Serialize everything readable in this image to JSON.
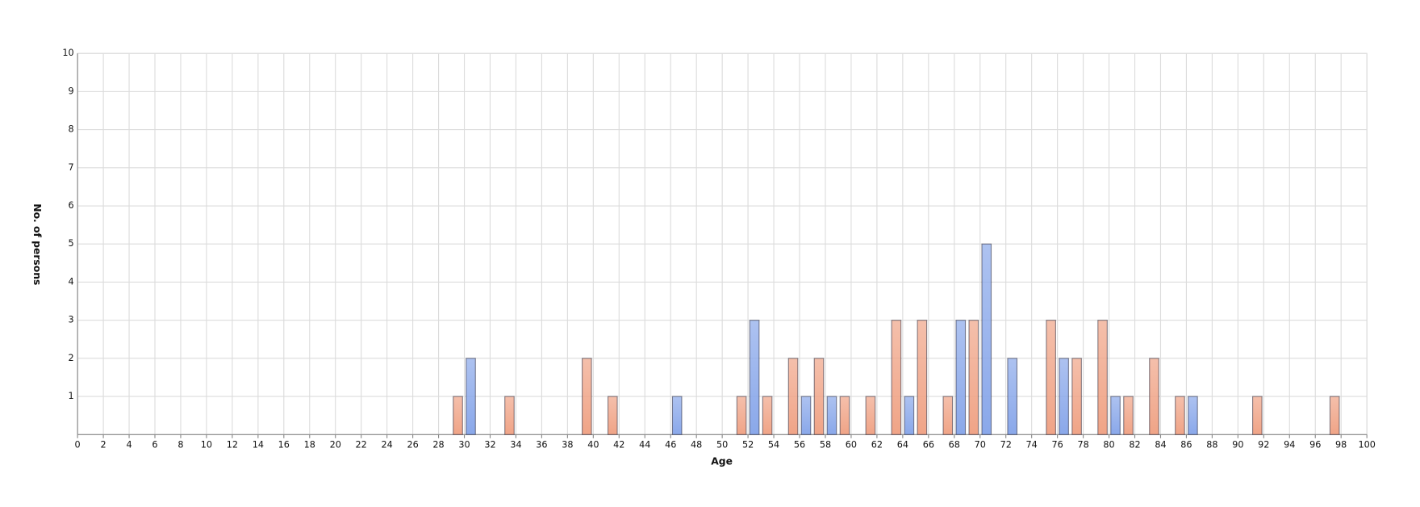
{
  "chart_data": {
    "type": "bar",
    "x_label": "Age",
    "y_label": "No. of persons",
    "xlim": [
      0,
      100
    ],
    "ylim": [
      0,
      10
    ],
    "xticks": [
      0,
      2,
      4,
      6,
      8,
      10,
      12,
      14,
      16,
      18,
      20,
      22,
      24,
      26,
      28,
      30,
      32,
      34,
      36,
      38,
      40,
      42,
      44,
      46,
      48,
      50,
      52,
      54,
      56,
      58,
      60,
      62,
      64,
      66,
      68,
      70,
      72,
      74,
      76,
      78,
      80,
      82,
      84,
      86,
      88,
      90,
      92,
      94,
      96,
      98,
      100
    ],
    "yticks": [
      1,
      2,
      3,
      4,
      5,
      6,
      7,
      8,
      9,
      10
    ],
    "grid": true,
    "series": [
      {
        "color": "#f0a487",
        "x": [
          29.5,
          33.5,
          39.5,
          41.5,
          51.5,
          53.5,
          55.5,
          57.5,
          59.5,
          61.5,
          63.5,
          65.5,
          67.5,
          69.5,
          75.5,
          77.5,
          79.5,
          81.5,
          83.5,
          85.5,
          91.5,
          97.5
        ],
        "values": [
          1,
          1,
          2,
          1,
          1,
          1,
          2,
          2,
          1,
          1,
          3,
          3,
          1,
          3,
          3,
          2,
          3,
          1,
          2,
          1,
          1,
          1
        ]
      },
      {
        "color": "#8aa8ea",
        "x": [
          30.5,
          46.5,
          52.5,
          56.5,
          58.5,
          64.5,
          68.5,
          70.5,
          72.5,
          76.5,
          80.5,
          86.5
        ],
        "values": [
          2,
          1,
          3,
          1,
          1,
          1,
          3,
          5,
          2,
          2,
          1,
          1
        ]
      }
    ]
  }
}
